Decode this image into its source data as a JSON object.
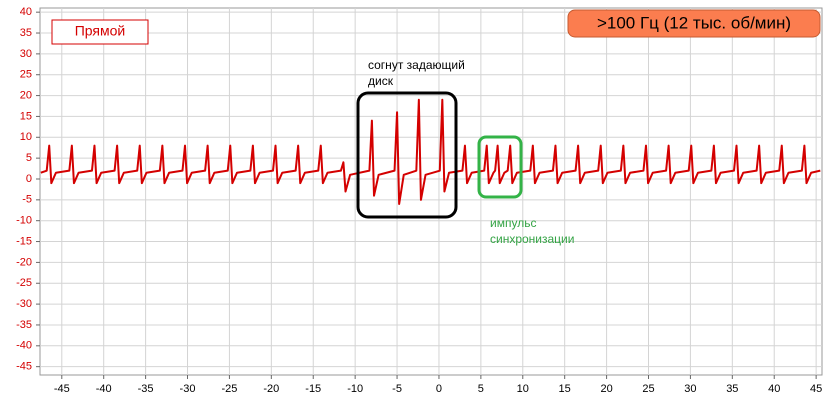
{
  "chart_data": {
    "type": "line",
    "channel_label": "Прямой",
    "badge": ">100 Гц (12 тыс. об/мин)",
    "annotations": [
      {
        "text": "согнут задающий диск"
      },
      {
        "text": "импульс синхронизации"
      }
    ],
    "xlim": [
      -47.6,
      45.7
    ],
    "ylim": [
      -47,
      41
    ],
    "xticks": [
      -45,
      -40,
      -35,
      -30,
      -25,
      -20,
      -15,
      -10,
      -5,
      0,
      5,
      10,
      15,
      20,
      25,
      30,
      35,
      40,
      45
    ],
    "yticks": [
      -45,
      -40,
      -35,
      -30,
      -25,
      -20,
      -15,
      -10,
      -5,
      0,
      5,
      10,
      15,
      20,
      25,
      30,
      35,
      40
    ],
    "grid": true,
    "series": [
      {
        "color": "#d40000",
        "x": [
          -47.5,
          -46.8,
          -46.5,
          -46.25,
          -45.7,
          -44.1,
          -43.8,
          -43.55,
          -43,
          -41.4,
          -41.1,
          -40.85,
          -40.3,
          -38.7,
          -38.4,
          -38.15,
          -37.6,
          -36,
          -35.7,
          -35.45,
          -34.9,
          -33.3,
          -33,
          -32.75,
          -32.2,
          -30.6,
          -30.3,
          -30.05,
          -29.5,
          -27.9,
          -27.6,
          -27.35,
          -26.8,
          -25.2,
          -24.9,
          -24.65,
          -24.1,
          -22.5,
          -22.2,
          -21.95,
          -21.4,
          -19.8,
          -19.5,
          -19.25,
          -18.7,
          -17.1,
          -16.8,
          -16.55,
          -16,
          -14.4,
          -14.1,
          -13.85,
          -13.3,
          -11.7,
          -11.4,
          -11.15,
          -10.6,
          -8.3,
          -8,
          -7.75,
          -7.2,
          -5.3,
          -5,
          -4.75,
          -4.2,
          -2.7,
          -2.4,
          -2.15,
          -1.6,
          0.1,
          0.4,
          0.65,
          1.2,
          2.8,
          3.1,
          3.35,
          3.9,
          5.4,
          5.7,
          5.95,
          6.5,
          6.7,
          7,
          7.25,
          7.8,
          8.2,
          8.5,
          8.75,
          9.3,
          10.9,
          11.2,
          11.45,
          12,
          13.6,
          13.9,
          14.15,
          14.7,
          16.3,
          16.6,
          16.85,
          17.4,
          19,
          19.3,
          19.55,
          20.1,
          21.7,
          22,
          22.25,
          22.8,
          24.4,
          24.7,
          24.95,
          25.5,
          27.1,
          27.4,
          27.65,
          28.2,
          29.8,
          30.1,
          30.35,
          30.9,
          32.5,
          32.8,
          33.05,
          33.6,
          35.2,
          35.5,
          35.75,
          36.3,
          37.9,
          38.2,
          38.45,
          39,
          40.6,
          40.9,
          41.15,
          41.7,
          43.3,
          43.6,
          43.85,
          44.4,
          45.5
        ],
        "values": [
          1.5,
          2,
          8,
          -1,
          1.5,
          2,
          8,
          -1,
          1.5,
          2,
          8,
          -1,
          1.5,
          2,
          8,
          -1,
          1.5,
          2,
          8,
          -1,
          1.5,
          2,
          8,
          -1,
          1.5,
          2,
          8,
          -1,
          1.5,
          2,
          8,
          -1,
          1.5,
          2,
          8,
          -1,
          1.5,
          2,
          8,
          -1,
          1.5,
          2,
          8,
          -1,
          1.5,
          2,
          8,
          -1,
          1.5,
          2,
          8,
          -1,
          1.5,
          2,
          4,
          -3,
          1,
          2,
          14,
          -4,
          1,
          2,
          16,
          -6,
          1,
          2,
          19,
          -5,
          1,
          2,
          19,
          -3,
          1.5,
          2,
          8,
          -1,
          1.5,
          2,
          8,
          -1,
          1.5,
          2,
          8,
          -1,
          1.5,
          2,
          8,
          -1,
          1.5,
          2,
          8,
          -1,
          1.5,
          2,
          8,
          -1,
          1.5,
          2,
          8,
          -1,
          1.5,
          2,
          8,
          -1,
          1.5,
          2,
          8,
          -1,
          1.5,
          2,
          8,
          -1,
          1.5,
          2,
          8,
          -1,
          1.5,
          2,
          8,
          -1,
          1.5,
          2,
          8,
          -1,
          1.5,
          2,
          8,
          -1,
          1.5,
          2,
          8,
          -1,
          1.5,
          2,
          8,
          -1,
          1.5,
          2,
          8,
          -1,
          1.5,
          2
        ]
      }
    ]
  }
}
